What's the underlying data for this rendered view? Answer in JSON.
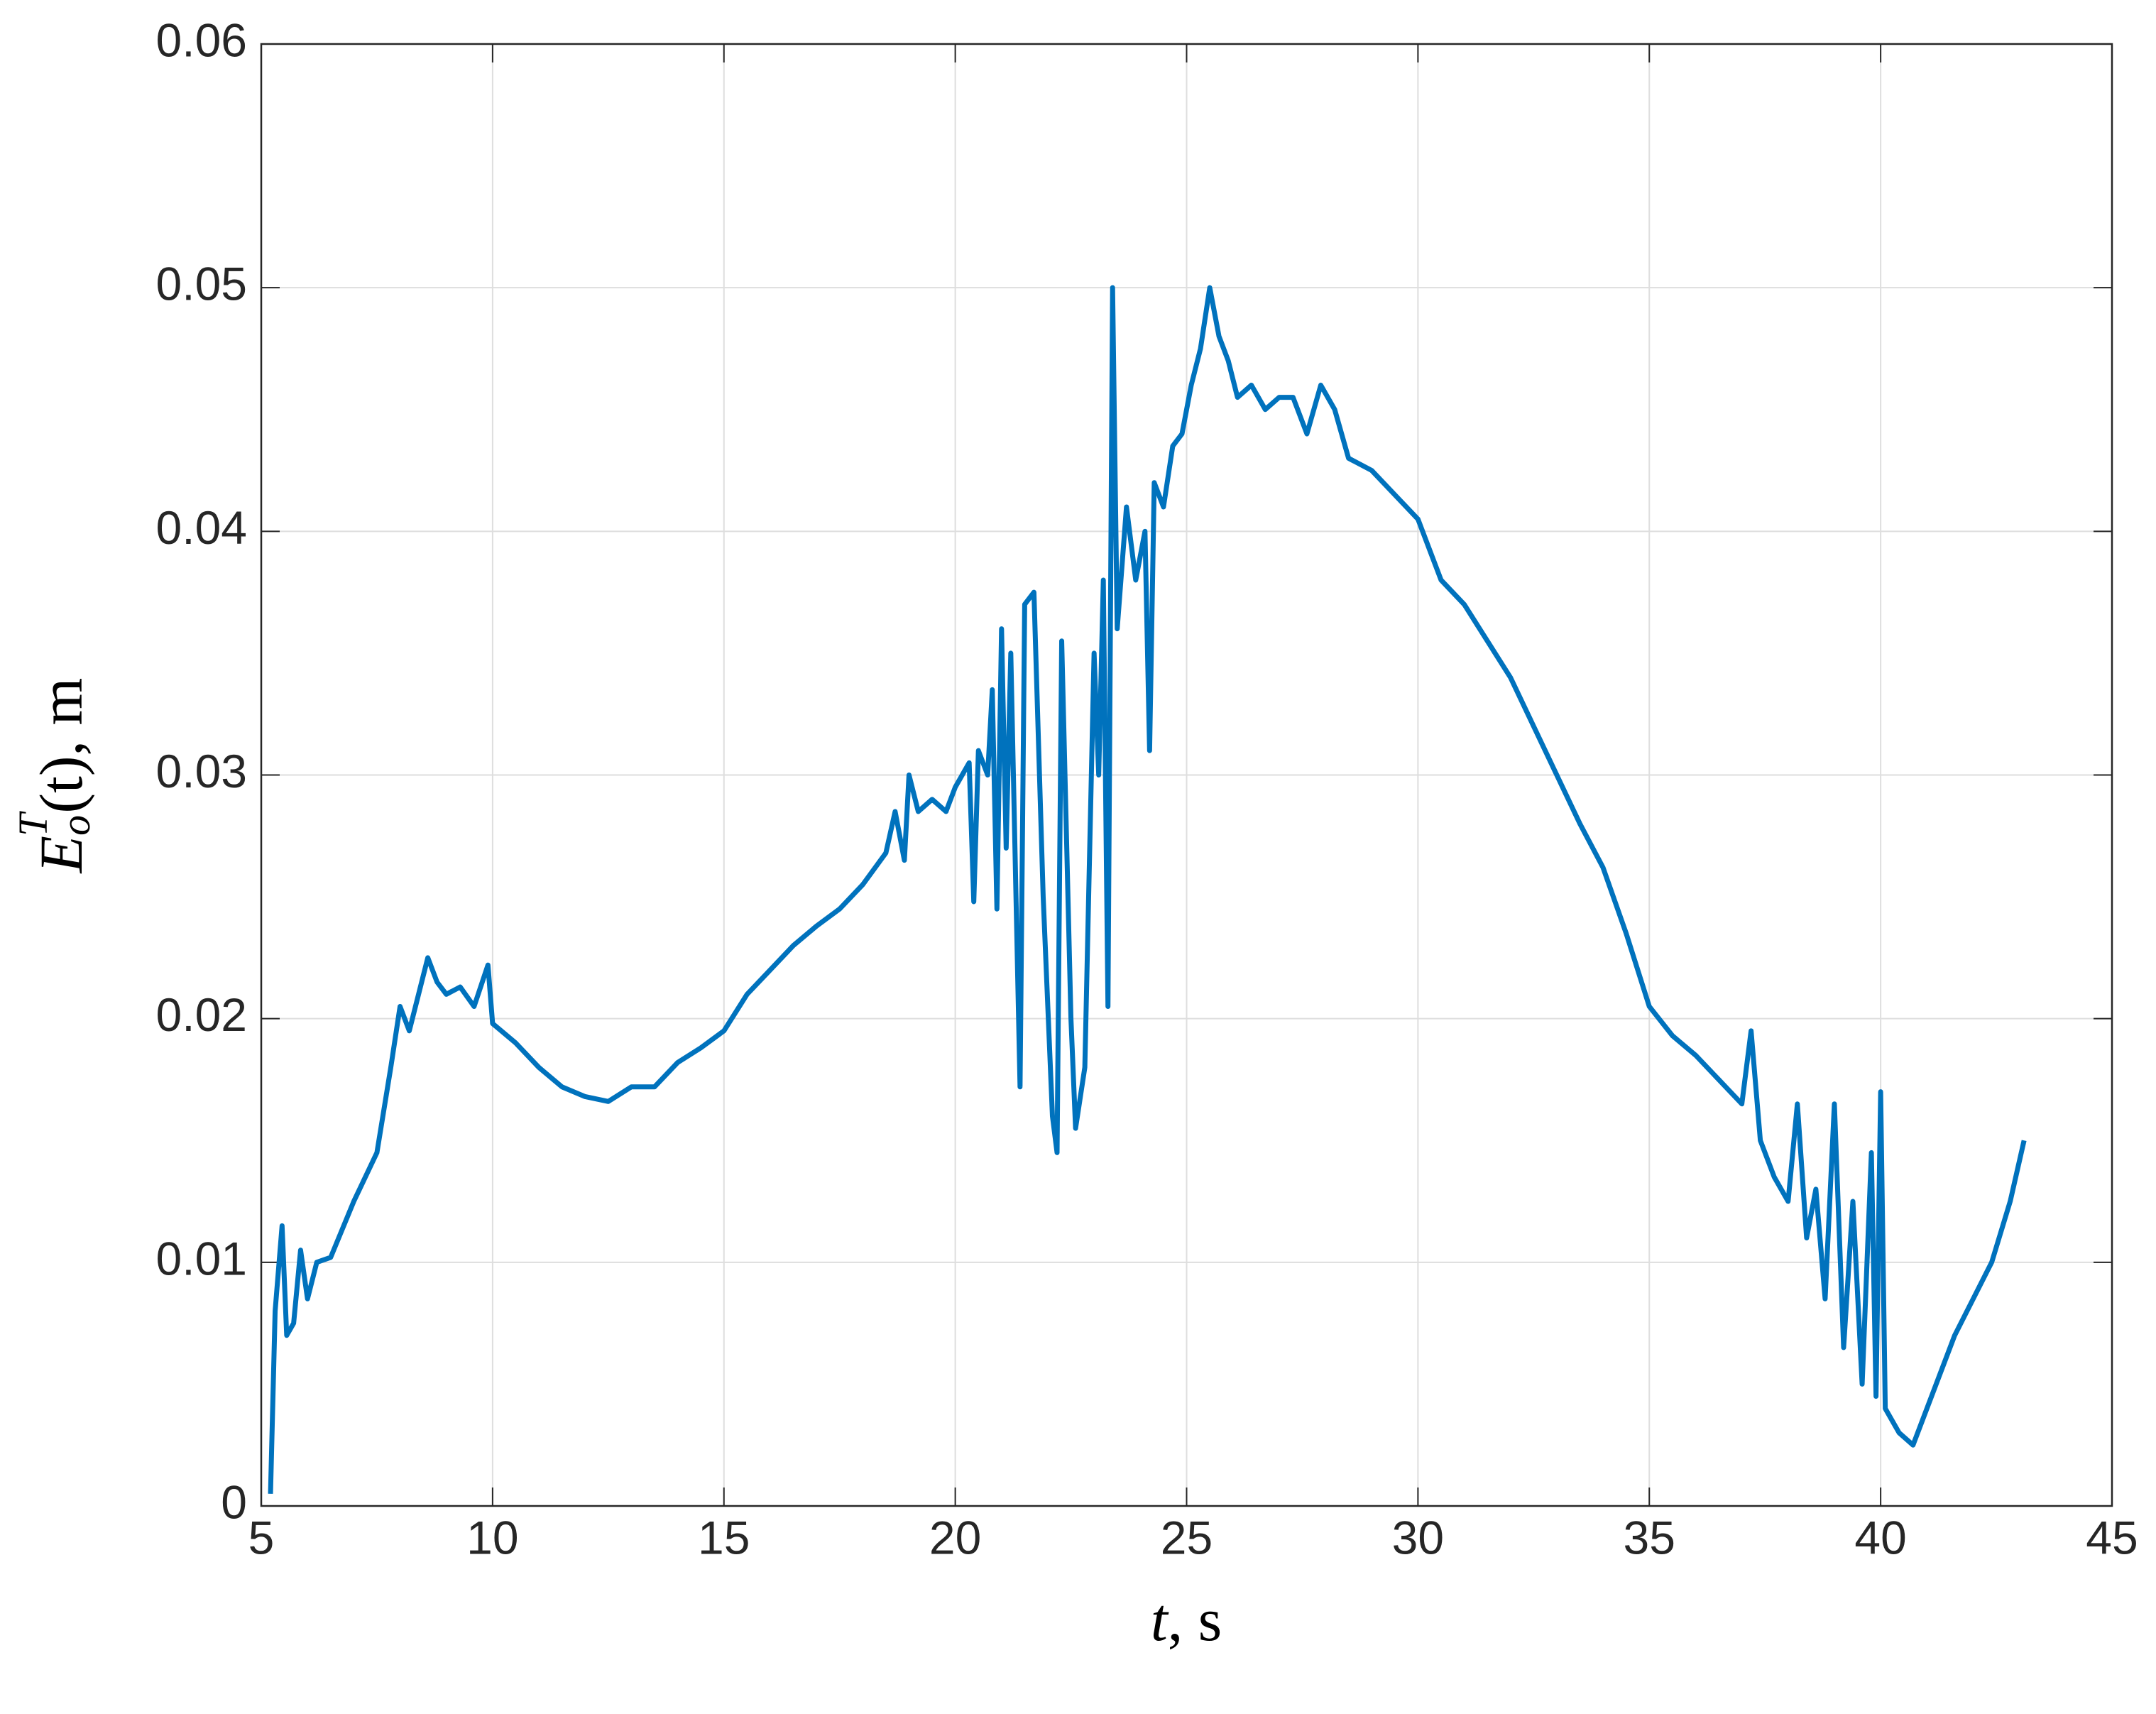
{
  "chart_data": {
    "type": "line",
    "xlabel": {
      "var": "t",
      "rest": ", s"
    },
    "ylabel": {
      "base": "E",
      "sub": "o",
      "sup": "T",
      "rest": "(t), m"
    },
    "color": "#0072bd",
    "grid": true,
    "xlim": [
      5,
      45
    ],
    "xticks": [
      5,
      10,
      15,
      20,
      25,
      30,
      35,
      40,
      45
    ],
    "ylim": [
      0,
      0.06
    ],
    "yticks": [
      0,
      0.01,
      0.02,
      0.03,
      0.04,
      0.05,
      0.06
    ],
    "x": [
      5.2,
      5.3,
      5.45,
      5.55,
      5.7,
      5.85,
      6.0,
      6.2,
      6.5,
      7.0,
      7.5,
      7.8,
      8.0,
      8.2,
      8.4,
      8.6,
      8.8,
      9.0,
      9.3,
      9.6,
      9.9,
      10.0,
      10.5,
      11,
      11.5,
      12,
      12.5,
      13,
      13.5,
      14,
      14.5,
      15,
      15.5,
      16,
      16.5,
      17,
      17.5,
      18,
      18.5,
      18.7,
      18.9,
      19.0,
      19.2,
      19.5,
      19.8,
      20.0,
      20.3,
      20.4,
      20.5,
      20.7,
      20.8,
      20.9,
      21.0,
      21.1,
      21.2,
      21.4,
      21.5,
      21.7,
      21.9,
      22.1,
      22.2,
      22.3,
      22.5,
      22.6,
      22.8,
      23.0,
      23.1,
      23.2,
      23.3,
      23.4,
      23.5,
      23.7,
      23.9,
      24.1,
      24.2,
      24.3,
      24.5,
      24.7,
      24.9,
      25.1,
      25.3,
      25.5,
      25.7,
      25.9,
      26.1,
      26.4,
      26.7,
      27.0,
      27.3,
      27.6,
      27.9,
      28.2,
      28.5,
      29,
      29.5,
      30,
      30.5,
      31,
      31.5,
      32,
      32.5,
      33,
      33.5,
      34,
      34.5,
      35,
      35.5,
      36,
      36.5,
      37,
      37.2,
      37.4,
      37.7,
      38,
      38.2,
      38.4,
      38.6,
      38.8,
      39.0,
      39.2,
      39.4,
      39.6,
      39.8,
      39.9,
      40.0,
      40.1,
      40.4,
      40.7,
      41,
      41.3,
      41.6,
      42,
      42.4,
      42.8,
      43.1
    ],
    "values": [
      0.0005,
      0.008,
      0.0115,
      0.007,
      0.0075,
      0.0105,
      0.0085,
      0.01,
      0.0102,
      0.0125,
      0.0145,
      0.018,
      0.0205,
      0.0195,
      0.021,
      0.0225,
      0.0215,
      0.021,
      0.0213,
      0.0205,
      0.0222,
      0.0198,
      0.019,
      0.018,
      0.0172,
      0.0168,
      0.0166,
      0.0172,
      0.0172,
      0.0182,
      0.0188,
      0.0195,
      0.021,
      0.022,
      0.023,
      0.0238,
      0.0245,
      0.0255,
      0.0268,
      0.0285,
      0.0265,
      0.03,
      0.0285,
      0.029,
      0.0285,
      0.0295,
      0.0305,
      0.0248,
      0.031,
      0.03,
      0.0335,
      0.0245,
      0.036,
      0.027,
      0.035,
      0.0172,
      0.037,
      0.0375,
      0.025,
      0.016,
      0.0145,
      0.0355,
      0.02,
      0.0155,
      0.018,
      0.035,
      0.03,
      0.038,
      0.0205,
      0.05,
      0.036,
      0.041,
      0.038,
      0.04,
      0.031,
      0.042,
      0.041,
      0.0435,
      0.044,
      0.046,
      0.0475,
      0.05,
      0.048,
      0.047,
      0.0455,
      0.046,
      0.045,
      0.0455,
      0.0455,
      0.044,
      0.046,
      0.045,
      0.043,
      0.0425,
      0.0415,
      0.0405,
      0.038,
      0.037,
      0.0355,
      0.034,
      0.032,
      0.03,
      0.028,
      0.0262,
      0.0235,
      0.0205,
      0.0193,
      0.0185,
      0.0175,
      0.0165,
      0.0195,
      0.015,
      0.0135,
      0.0125,
      0.0165,
      0.011,
      0.013,
      0.0085,
      0.0165,
      0.0065,
      0.0125,
      0.005,
      0.0145,
      0.0045,
      0.017,
      0.004,
      0.003,
      0.0025,
      0.004,
      0.0055,
      0.007,
      0.0085,
      0.01,
      0.0125,
      0.015
    ]
  }
}
